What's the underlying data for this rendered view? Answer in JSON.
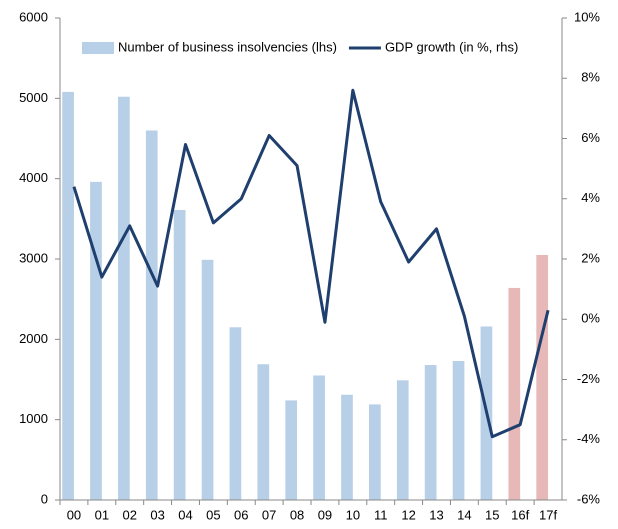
{
  "chart_data": {
    "type": "bar-line",
    "categories": [
      "00",
      "01",
      "02",
      "03",
      "04",
      "05",
      "06",
      "07",
      "08",
      "09",
      "10",
      "11",
      "12",
      "13",
      "14",
      "15",
      "16f",
      "17f"
    ],
    "series": [
      {
        "name": "Number of business insolvencies (lhs)",
        "type": "bar",
        "color": "#b8cfe8",
        "colors": [
          "#b8cfe8",
          "#b8cfe8",
          "#b8cfe8",
          "#b8cfe8",
          "#b8cfe8",
          "#b8cfe8",
          "#b8cfe8",
          "#b8cfe8",
          "#b8cfe8",
          "#b8cfe8",
          "#b8cfe8",
          "#b8cfe8",
          "#b8cfe8",
          "#b8cfe8",
          "#b8cfe8",
          "#b8cfe8",
          "#e6b8b8",
          "#e6b8b8"
        ],
        "values": [
          5080,
          3960,
          5020,
          4600,
          3610,
          2990,
          2150,
          1690,
          1240,
          1550,
          1310,
          1190,
          1490,
          1680,
          1730,
          2160,
          2640,
          3050
        ]
      },
      {
        "name": "GDP growth (in %, rhs)",
        "type": "line",
        "axis": "y2",
        "color": "#1f3f6e",
        "values": [
          4.4,
          1.4,
          3.1,
          1.1,
          5.8,
          3.2,
          4.0,
          6.1,
          5.1,
          -0.1,
          7.6,
          3.9,
          1.9,
          3.0,
          0.1,
          -3.9,
          -3.5,
          0.3
        ]
      }
    ],
    "ylim": [
      0,
      6000
    ],
    "yticks": [
      0,
      1000,
      2000,
      3000,
      4000,
      5000,
      6000
    ],
    "y2lim": [
      -6,
      10
    ],
    "y2ticks": [
      {
        "value": -6,
        "label": "-6%"
      },
      {
        "value": -4,
        "label": "-4%"
      },
      {
        "value": -2,
        "label": "-2%"
      },
      {
        "value": 0,
        "label": "0%"
      },
      {
        "value": 2,
        "label": "2%"
      },
      {
        "value": 4,
        "label": "4%"
      },
      {
        "value": 6,
        "label": "6%"
      },
      {
        "value": 8,
        "label": "8%"
      },
      {
        "value": 10,
        "label": "10%"
      }
    ]
  }
}
